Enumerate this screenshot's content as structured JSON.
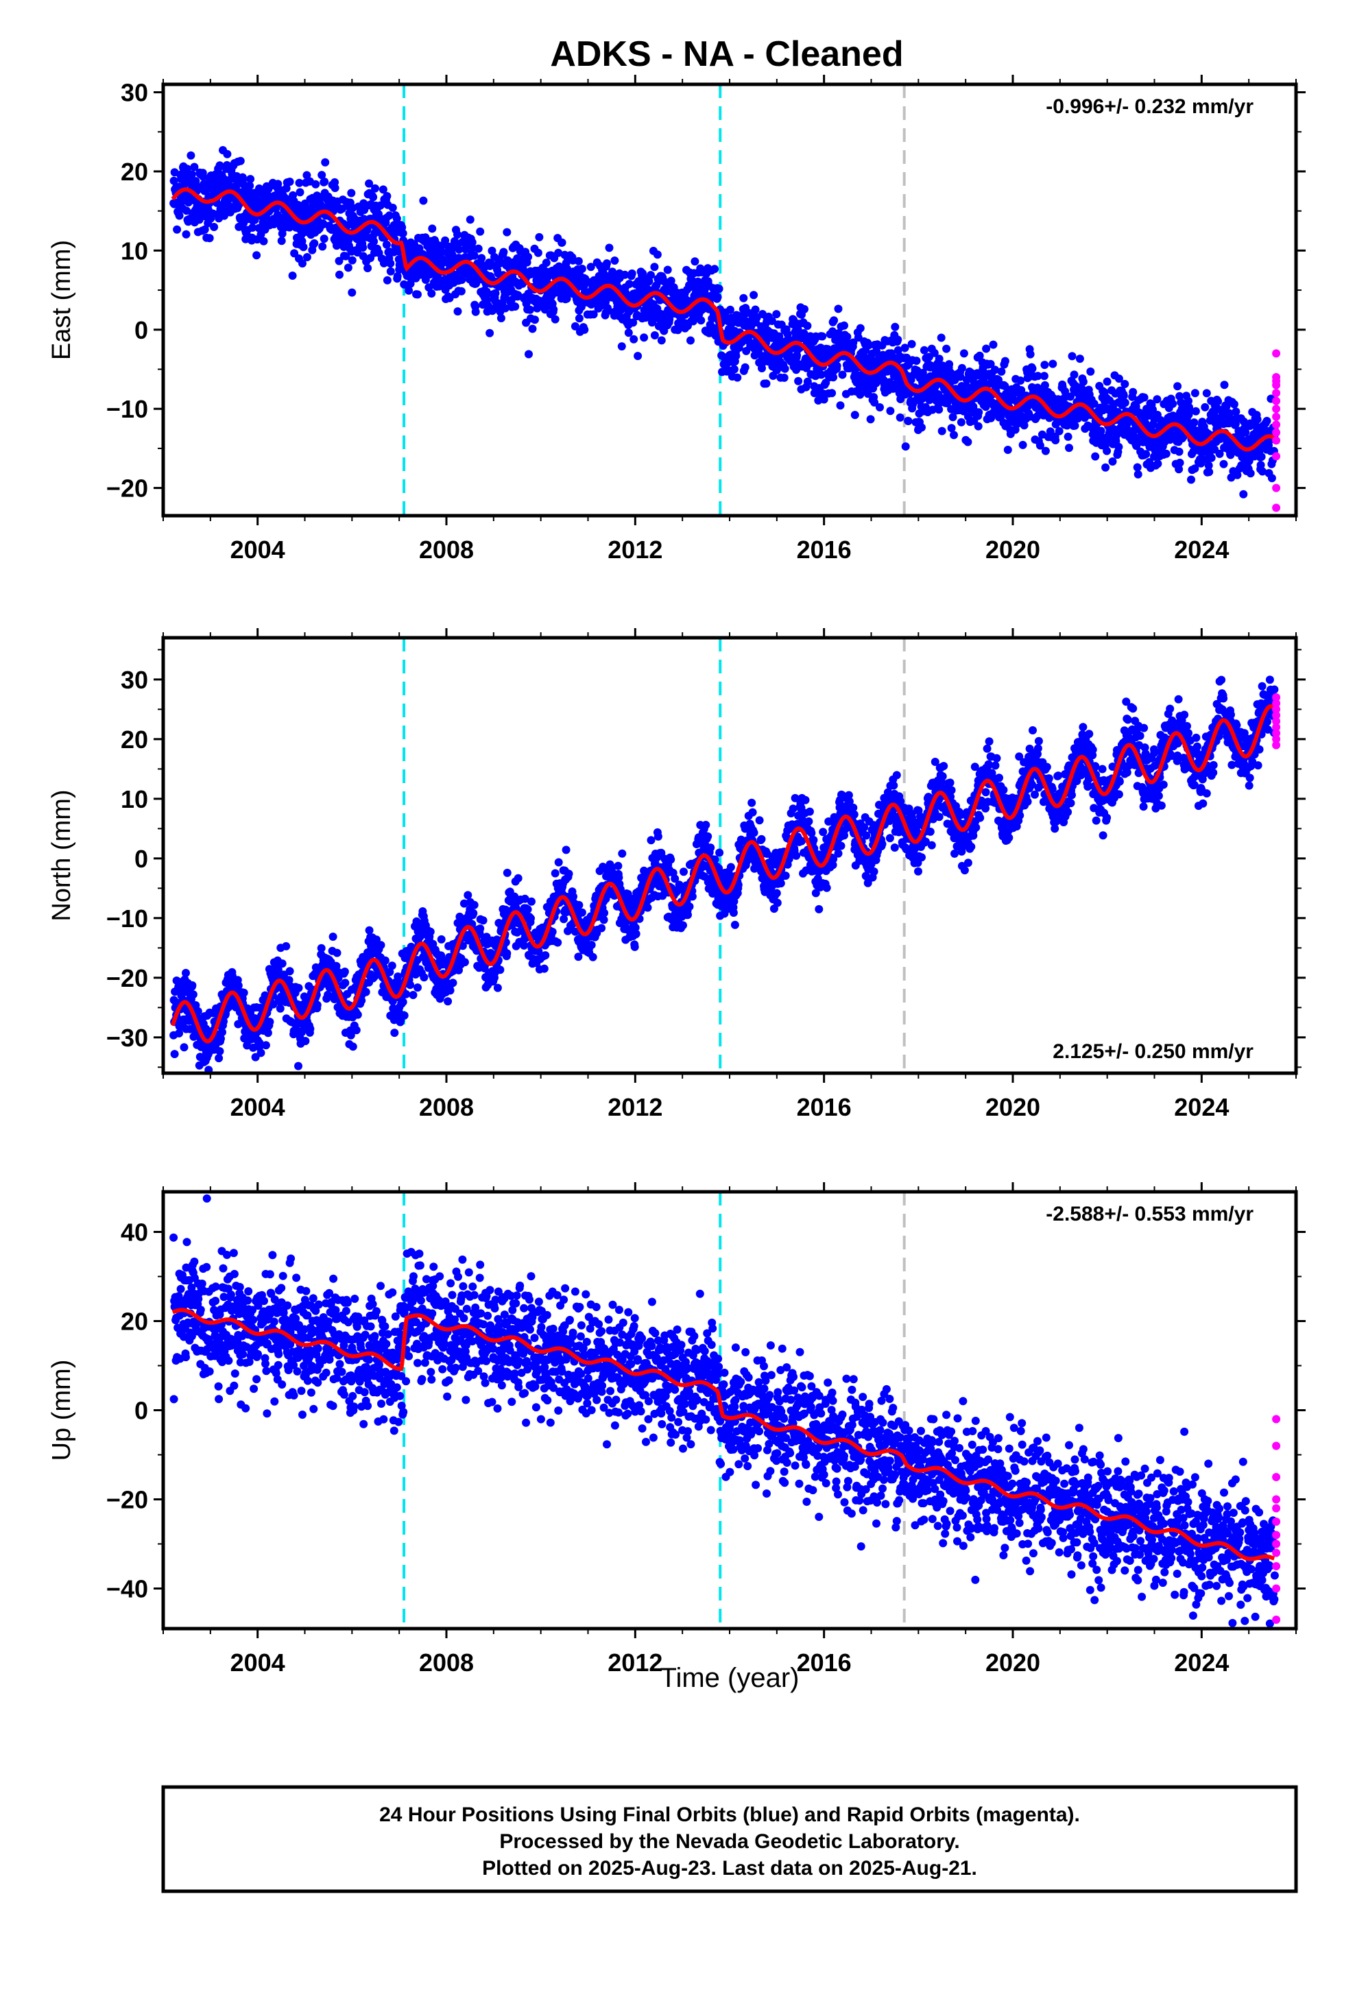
{
  "title": "ADKS  - NA - Cleaned",
  "colors": {
    "final": "#0000ff",
    "rapid": "#ff00ff",
    "model": "#ff0000",
    "offset_equipment": "#00e5ee",
    "offset_other": "#c0c0c0",
    "frame": "#000000"
  },
  "x_axis": {
    "label": "Time (year)",
    "range": [
      2002.0,
      2026.0
    ],
    "ticks": [
      2004,
      2008,
      2012,
      2016,
      2020,
      2024
    ],
    "tick_labels": [
      "2004",
      "2008",
      "2012",
      "2016",
      "2020",
      "2024"
    ]
  },
  "offset_lines": [
    {
      "year": 2007.1,
      "color": "#00e5ee"
    },
    {
      "year": 2013.8,
      "color": "#00e5ee"
    },
    {
      "year": 2017.7,
      "color": "#c0c0c0"
    }
  ],
  "chart_data": [
    {
      "type": "scatter",
      "component": "East",
      "ylabel": "East (mm)",
      "ylim": [
        -23.5,
        31.0
      ],
      "yticks": [
        -20,
        -10,
        0,
        10,
        20,
        30
      ],
      "ytick_labels": [
        "−20",
        "−10",
        "0",
        "10",
        "20",
        "30"
      ],
      "rate_label": "-0.996+/- 0.232 mm/yr",
      "rate_position": "top-right",
      "model_knots": [
        [
          2002.2,
          16.5
        ],
        [
          2003.0,
          17.2
        ],
        [
          2004.0,
          15.5
        ],
        [
          2005.0,
          14.5
        ],
        [
          2006.0,
          13.2
        ],
        [
          2007.05,
          11.8
        ],
        [
          2007.15,
          8.0
        ],
        [
          2008.0,
          8.2
        ],
        [
          2009.0,
          6.8
        ],
        [
          2010.0,
          5.8
        ],
        [
          2011.0,
          5.0
        ],
        [
          2012.0,
          4.0
        ],
        [
          2013.0,
          3.2
        ],
        [
          2013.75,
          2.6
        ],
        [
          2013.85,
          -0.5
        ],
        [
          2015.0,
          -2.0
        ],
        [
          2016.0,
          -3.5
        ],
        [
          2017.0,
          -4.5
        ],
        [
          2017.65,
          -5.5
        ],
        [
          2017.75,
          -6.5
        ],
        [
          2019.0,
          -8.0
        ],
        [
          2020.0,
          -9.0
        ],
        [
          2021.0,
          -10.0
        ],
        [
          2022.0,
          -11.0
        ],
        [
          2023.0,
          -12.5
        ],
        [
          2024.0,
          -13.5
        ],
        [
          2025.5,
          -14.5
        ]
      ],
      "seasonal_amplitude": 1.1,
      "scatter_sd": 2.2,
      "rapid_points": [
        -3,
        -6,
        -6.5,
        -7,
        -8,
        -9,
        -10,
        -11,
        -12,
        -13,
        -14,
        -16,
        -20,
        -22.5
      ],
      "series": [
        {
          "name": "Final Orbits (blue)"
        },
        {
          "name": "Rapid Orbits (magenta)"
        }
      ]
    },
    {
      "type": "scatter",
      "component": "North",
      "ylabel": "North (mm)",
      "ylim": [
        -36.0,
        37.0
      ],
      "yticks": [
        -30,
        -20,
        -10,
        0,
        10,
        20,
        30
      ],
      "ytick_labels": [
        "−30",
        "−20",
        "−10",
        "0",
        "10",
        "20",
        "30"
      ],
      "rate_label": "2.125+/- 0.250 mm/yr",
      "rate_position": "bottom-right",
      "model_knots": [
        [
          2002.2,
          -28.0
        ],
        [
          2003.0,
          -27.0
        ],
        [
          2004.0,
          -25.0
        ],
        [
          2005.0,
          -23.0
        ],
        [
          2006.0,
          -21.5
        ],
        [
          2007.0,
          -19.5
        ],
        [
          2008.0,
          -16.0
        ],
        [
          2009.0,
          -14.0
        ],
        [
          2010.0,
          -11.0
        ],
        [
          2011.0,
          -9.0
        ],
        [
          2012.0,
          -6.5
        ],
        [
          2013.0,
          -4.0
        ],
        [
          2014.0,
          -2.0
        ],
        [
          2015.0,
          0.5
        ],
        [
          2016.0,
          2.5
        ],
        [
          2017.0,
          4.5
        ],
        [
          2018.0,
          6.5
        ],
        [
          2019.0,
          8.5
        ],
        [
          2020.0,
          10.5
        ],
        [
          2021.0,
          12.5
        ],
        [
          2022.0,
          14.5
        ],
        [
          2023.0,
          16.5
        ],
        [
          2024.0,
          18.5
        ],
        [
          2025.5,
          22.0
        ]
      ],
      "seasonal_amplitude": 4.0,
      "scatter_sd": 2.4,
      "rapid_points": [
        19,
        20,
        21,
        22,
        23,
        24,
        25,
        26,
        27
      ],
      "series": [
        {
          "name": "Final Orbits (blue)"
        },
        {
          "name": "Rapid Orbits (magenta)"
        }
      ]
    },
    {
      "type": "scatter",
      "component": "Up",
      "ylabel": "Up (mm)",
      "ylim": [
        -49.0,
        49.0
      ],
      "yticks": [
        -40,
        -20,
        0,
        20,
        40
      ],
      "ytick_labels": [
        "−40",
        "−20",
        "0",
        "20",
        "40"
      ],
      "rate_label": "-2.588+/- 0.553 mm/yr",
      "rate_position": "top-right",
      "model_knots": [
        [
          2002.2,
          22.0
        ],
        [
          2003.0,
          20.5
        ],
        [
          2004.0,
          18.0
        ],
        [
          2005.0,
          15.5
        ],
        [
          2006.0,
          13.0
        ],
        [
          2007.05,
          10.0
        ],
        [
          2007.15,
          21.0
        ],
        [
          2008.0,
          19.0
        ],
        [
          2009.0,
          16.5
        ],
        [
          2010.0,
          14.0
        ],
        [
          2011.0,
          11.5
        ],
        [
          2012.0,
          9.0
        ],
        [
          2013.0,
          6.5
        ],
        [
          2013.75,
          4.5
        ],
        [
          2013.85,
          -0.5
        ],
        [
          2015.0,
          -3.5
        ],
        [
          2016.0,
          -6.5
        ],
        [
          2017.0,
          -9.0
        ],
        [
          2017.65,
          -10.5
        ],
        [
          2017.75,
          -12.0
        ],
        [
          2019.0,
          -15.5
        ],
        [
          2020.0,
          -18.5
        ],
        [
          2021.0,
          -21.0
        ],
        [
          2022.0,
          -23.5
        ],
        [
          2023.0,
          -26.5
        ],
        [
          2024.0,
          -29.5
        ],
        [
          2025.5,
          -34.0
        ]
      ],
      "seasonal_amplitude": 1.0,
      "scatter_sd": 6.5,
      "rapid_points": [
        -2,
        -8,
        -15,
        -20,
        -22,
        -25,
        -28,
        -30,
        -32,
        -35,
        -40,
        -47
      ],
      "series": [
        {
          "name": "Final Orbits (blue)"
        },
        {
          "name": "Rapid Orbits (magenta)"
        }
      ]
    }
  ],
  "footer": {
    "line1": "24 Hour Positions Using Final Orbits (blue) and Rapid Orbits (magenta).",
    "line2": "Processed by the Nevada Geodetic Laboratory.",
    "line3": "Plotted on 2025-Aug-23. Last data on 2025-Aug-21."
  }
}
